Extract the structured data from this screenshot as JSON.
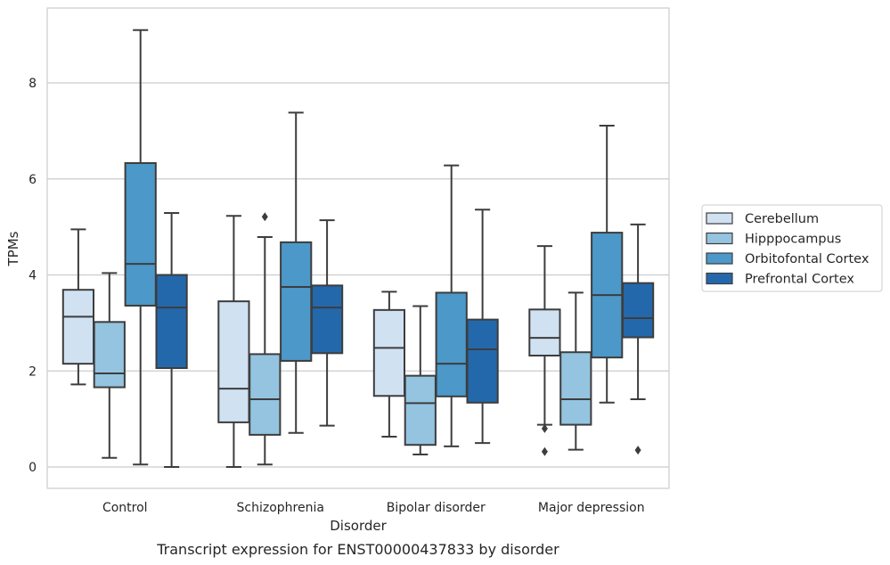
{
  "chart_data": {
    "type": "box",
    "xlabel": "Disorder",
    "ylabel": "TPMs",
    "caption": "Transcript expression for ENST00000437833 by disorder",
    "ylim": [
      -0.45,
      9.5
    ],
    "yticks": [
      0,
      2,
      4,
      6,
      8
    ],
    "grid": "horizontal",
    "legend_position": "center-right outside",
    "categories": [
      "Control",
      "Schizophrenia",
      "Bipolar disorder",
      "Major depression"
    ],
    "series": [
      {
        "name": "Cerebellum",
        "color": "#d0e1f2",
        "boxes": [
          {
            "whislo": 1.72,
            "q1": 2.15,
            "med": 3.13,
            "q3": 3.69,
            "whishi": 4.95,
            "fliers": []
          },
          {
            "whislo": 0.0,
            "q1": 0.93,
            "med": 1.63,
            "q3": 3.45,
            "whishi": 5.23,
            "fliers": []
          },
          {
            "whislo": 0.63,
            "q1": 1.48,
            "med": 2.48,
            "q3": 3.27,
            "whishi": 3.65,
            "fliers": []
          },
          {
            "whislo": 0.88,
            "q1": 2.32,
            "med": 2.69,
            "q3": 3.28,
            "whishi": 4.6,
            "fliers": [
              0.8,
              0.32
            ]
          }
        ]
      },
      {
        "name": "Hipppocampus",
        "color": "#94c4df",
        "boxes": [
          {
            "whislo": 0.19,
            "q1": 1.66,
            "med": 1.95,
            "q3": 3.02,
            "whishi": 4.04,
            "fliers": []
          },
          {
            "whislo": 0.05,
            "q1": 0.67,
            "med": 1.41,
            "q3": 2.35,
            "whishi": 4.79,
            "fliers": [
              5.21
            ]
          },
          {
            "whislo": 0.26,
            "q1": 0.46,
            "med": 1.33,
            "q3": 1.9,
            "whishi": 3.35,
            "fliers": []
          },
          {
            "whislo": 0.36,
            "q1": 0.88,
            "med": 1.41,
            "q3": 2.39,
            "whishi": 3.63,
            "fliers": []
          }
        ]
      },
      {
        "name": "Orbitofontal Cortex",
        "color": "#4b98c9",
        "boxes": [
          {
            "whislo": 0.05,
            "q1": 3.36,
            "med": 4.23,
            "q3": 6.33,
            "whishi": 9.1,
            "fliers": []
          },
          {
            "whislo": 0.71,
            "q1": 2.21,
            "med": 3.75,
            "q3": 4.68,
            "whishi": 7.38,
            "fliers": []
          },
          {
            "whislo": 0.43,
            "q1": 1.47,
            "med": 2.15,
            "q3": 3.63,
            "whishi": 6.28,
            "fliers": []
          },
          {
            "whislo": 1.34,
            "q1": 2.28,
            "med": 3.58,
            "q3": 4.88,
            "whishi": 7.11,
            "fliers": []
          }
        ]
      },
      {
        "name": "Prefrontal Cortex",
        "color": "#2468ac",
        "boxes": [
          {
            "whislo": 0.0,
            "q1": 2.06,
            "med": 3.32,
            "q3": 4.0,
            "whishi": 5.29,
            "fliers": []
          },
          {
            "whislo": 0.86,
            "q1": 2.37,
            "med": 3.32,
            "q3": 3.78,
            "whishi": 5.14,
            "fliers": []
          },
          {
            "whislo": 0.5,
            "q1": 1.34,
            "med": 2.45,
            "q3": 3.07,
            "whishi": 5.36,
            "fliers": []
          },
          {
            "whislo": 1.41,
            "q1": 2.7,
            "med": 3.1,
            "q3": 3.83,
            "whishi": 5.05,
            "fliers": [
              0.35
            ]
          }
        ]
      }
    ]
  }
}
